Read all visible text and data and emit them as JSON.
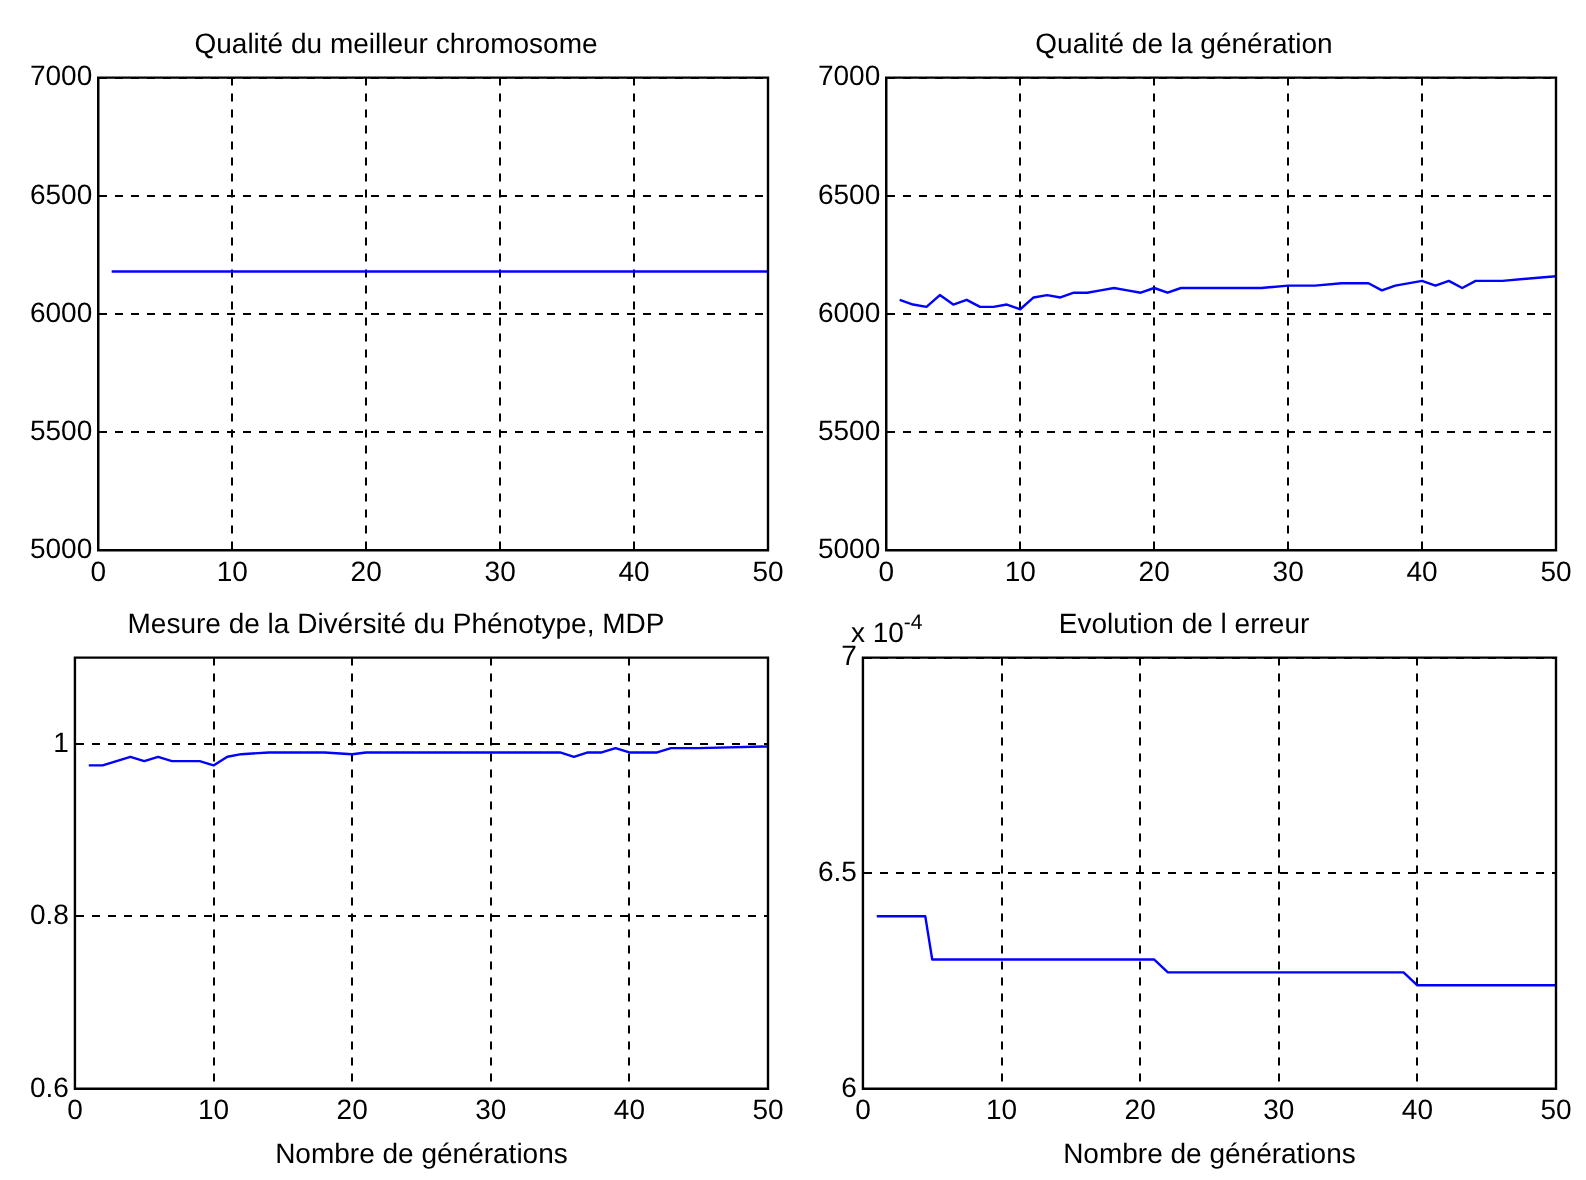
{
  "chart_data": [
    {
      "type": "line",
      "title": "Qualité du meilleur chromosome",
      "xlim": [
        0,
        50
      ],
      "xticks": [
        0,
        10,
        20,
        30,
        40,
        50
      ],
      "ylim": [
        5000,
        7000
      ],
      "yticks": [
        5000,
        5500,
        6000,
        6500,
        7000
      ],
      "grid": true,
      "series": [
        {
          "color": "#0000ff",
          "x": [
            1,
            10,
            20,
            30,
            40,
            50
          ],
          "values": [
            6180,
            6180,
            6180,
            6180,
            6180,
            6180
          ]
        }
      ]
    },
    {
      "type": "line",
      "title": "Qualité de la génération",
      "xlim": [
        0,
        50
      ],
      "xticks": [
        0,
        10,
        20,
        30,
        40,
        50
      ],
      "ylim": [
        5000,
        7000
      ],
      "yticks": [
        5000,
        5500,
        6000,
        6500,
        7000
      ],
      "grid": true,
      "series": [
        {
          "color": "#0000ff",
          "x": [
            1,
            2,
            3,
            4,
            5,
            6,
            7,
            8,
            9,
            10,
            11,
            12,
            13,
            14,
            15,
            16,
            17,
            18,
            19,
            20,
            21,
            22,
            24,
            26,
            28,
            30,
            32,
            34,
            36,
            37,
            38,
            40,
            41,
            42,
            43,
            44,
            46,
            48,
            50
          ],
          "values": [
            6060,
            6040,
            6030,
            6080,
            6040,
            6060,
            6030,
            6030,
            6040,
            6020,
            6070,
            6080,
            6070,
            6090,
            6090,
            6100,
            6110,
            6100,
            6090,
            6110,
            6090,
            6110,
            6110,
            6110,
            6110,
            6120,
            6120,
            6130,
            6130,
            6100,
            6120,
            6140,
            6120,
            6140,
            6110,
            6140,
            6140,
            6150,
            6160
          ]
        }
      ]
    },
    {
      "type": "line",
      "title": "Mesure de la Divérsité du Phénotype, MDP",
      "xlabel": "Nombre de générations",
      "xlim": [
        0,
        50
      ],
      "xticks": [
        0,
        10,
        20,
        30,
        40,
        50
      ],
      "ylim": [
        0.6,
        1.1
      ],
      "yticks": [
        0.6,
        0.8,
        1
      ],
      "grid": true,
      "series": [
        {
          "color": "#0000ff",
          "x": [
            1,
            2,
            3,
            4,
            5,
            6,
            7,
            8,
            9,
            10,
            11,
            12,
            14,
            16,
            18,
            20,
            21,
            24,
            28,
            32,
            35,
            36,
            37,
            38,
            39,
            40,
            41,
            42,
            43,
            45,
            50
          ],
          "values": [
            0.975,
            0.975,
            0.98,
            0.985,
            0.98,
            0.985,
            0.98,
            0.98,
            0.98,
            0.975,
            0.985,
            0.988,
            0.99,
            0.99,
            0.99,
            0.988,
            0.99,
            0.99,
            0.99,
            0.99,
            0.99,
            0.985,
            0.99,
            0.99,
            0.995,
            0.99,
            0.99,
            0.99,
            0.995,
            0.995,
            0.997
          ]
        }
      ]
    },
    {
      "type": "line",
      "title": "Evolution de l erreur",
      "xlabel": "Nombre de générations",
      "annotations": [
        "x 10$^{-4}$"
      ],
      "xlim": [
        0,
        50
      ],
      "xticks": [
        0,
        10,
        20,
        30,
        40,
        50
      ],
      "ylim": [
        6,
        7
      ],
      "yticks": [
        6,
        6.5,
        7
      ],
      "grid": true,
      "series": [
        {
          "color": "#0000ff",
          "x": [
            1,
            4.5,
            5,
            21,
            22,
            39,
            40,
            50
          ],
          "values": [
            6.4,
            6.4,
            6.3,
            6.3,
            6.27,
            6.27,
            6.24,
            6.24
          ]
        }
      ]
    }
  ]
}
